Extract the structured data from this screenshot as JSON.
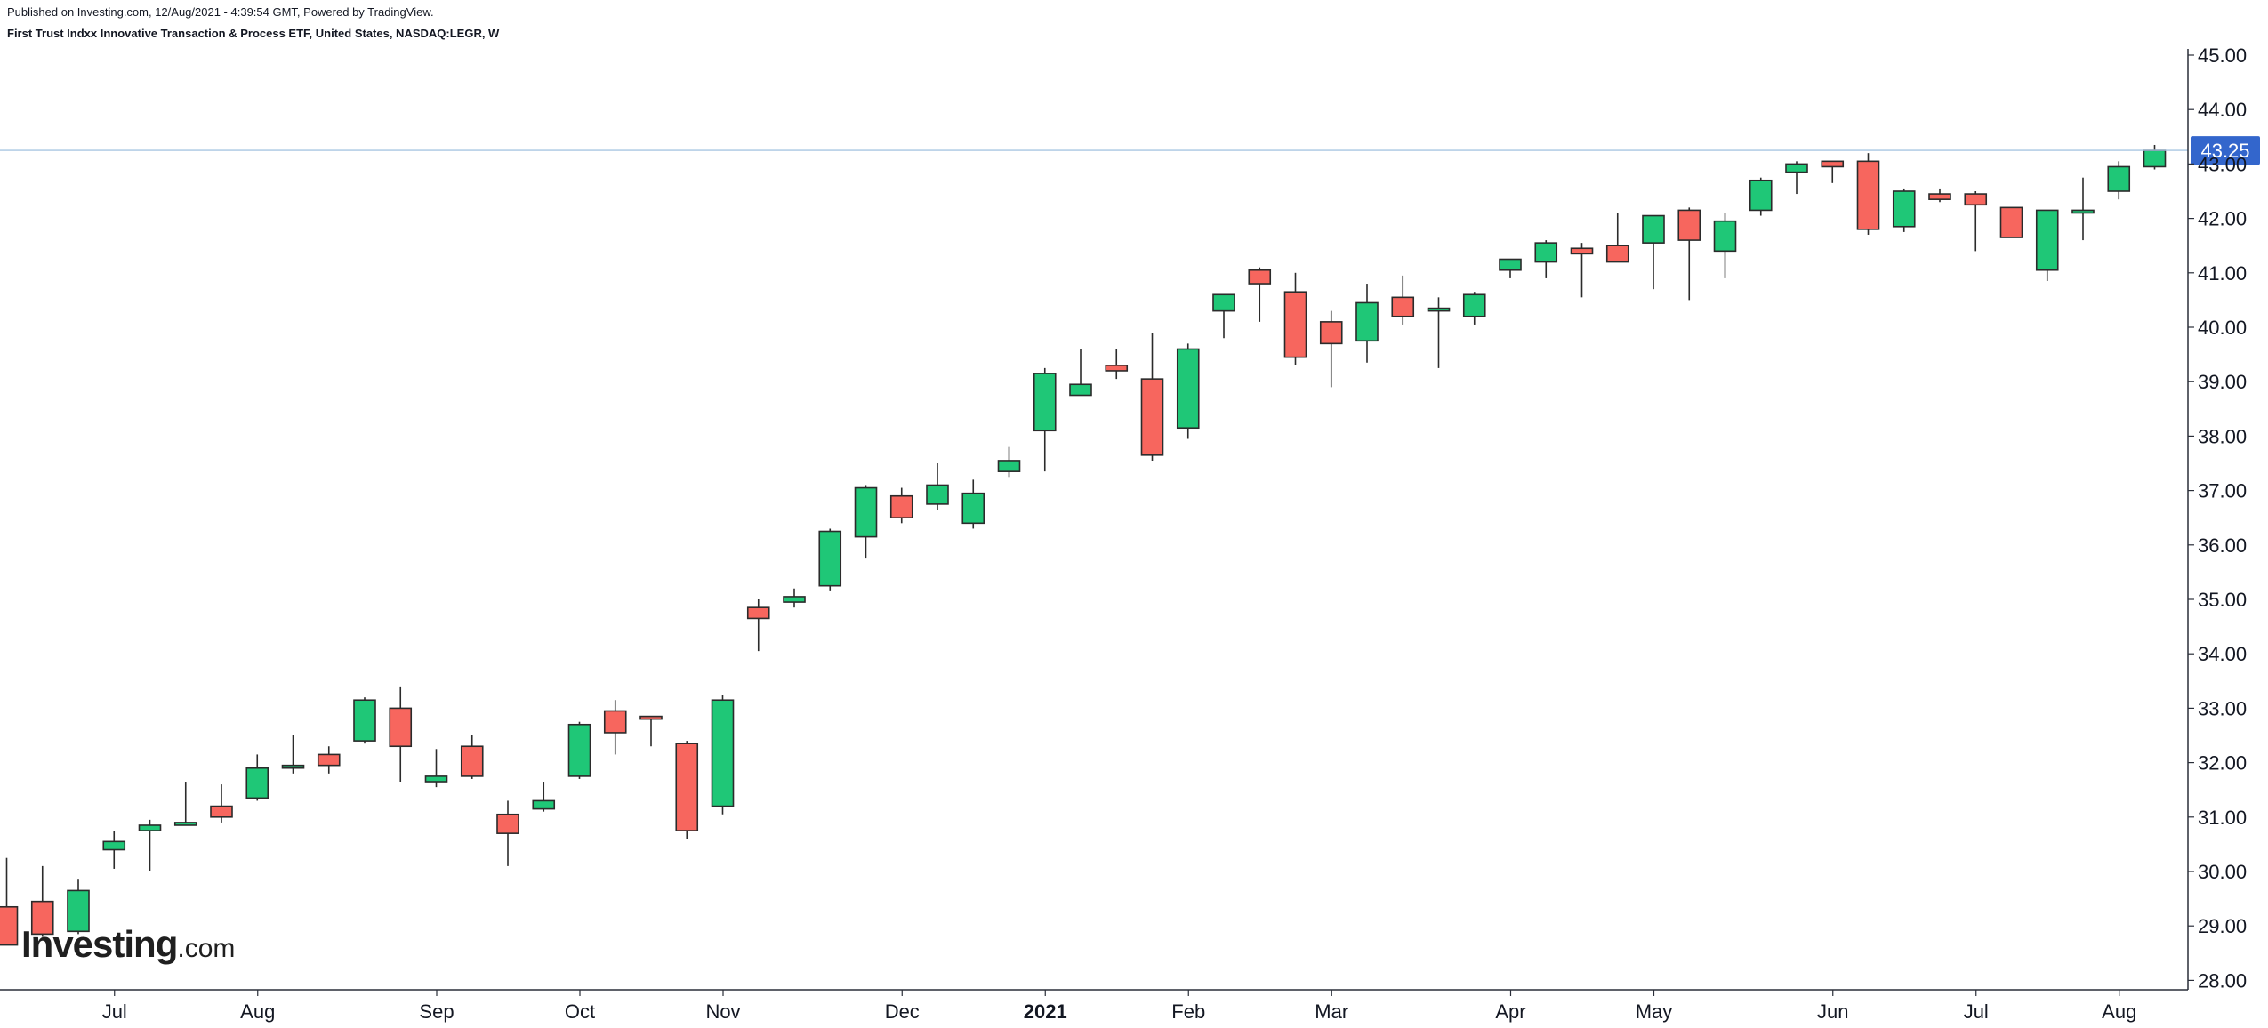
{
  "header": {
    "published": "Published on Investing.com, 12/Aug/2021 - 4:39:54 GMT, Powered by TradingView.",
    "title": "First Trust Indxx Innovative Transaction & Process ETF, United States, NASDAQ:LEGR, W"
  },
  "logo": {
    "main": "Investing",
    "suffix": ".com"
  },
  "chart_data": {
    "type": "candlestick",
    "ylim": [
      27.7,
      45.3
    ],
    "y_ticks": [
      "28.00",
      "29.00",
      "30.00",
      "31.00",
      "32.00",
      "33.00",
      "34.00",
      "35.00",
      "36.00",
      "37.00",
      "38.00",
      "39.00",
      "40.00",
      "41.00",
      "42.00",
      "43.00",
      "44.00",
      "45.00"
    ],
    "last_price": {
      "label": "43.25",
      "value": 43.25
    },
    "x_labels": [
      {
        "label": "Jul",
        "bar": 3,
        "bold": false
      },
      {
        "label": "Aug",
        "bar": 7,
        "bold": false
      },
      {
        "label": "Sep",
        "bar": 12,
        "bold": false
      },
      {
        "label": "Oct",
        "bar": 16,
        "bold": false
      },
      {
        "label": "Nov",
        "bar": 20,
        "bold": false
      },
      {
        "label": "Dec",
        "bar": 25,
        "bold": false
      },
      {
        "label": "2021",
        "bar": 29,
        "bold": true
      },
      {
        "label": "Feb",
        "bar": 33,
        "bold": false
      },
      {
        "label": "Mar",
        "bar": 37,
        "bold": false
      },
      {
        "label": "Apr",
        "bar": 42,
        "bold": false
      },
      {
        "label": "May",
        "bar": 46,
        "bold": false
      },
      {
        "label": "Jun",
        "bar": 51,
        "bold": false
      },
      {
        "label": "Jul",
        "bar": 55,
        "bold": false
      },
      {
        "label": "Aug",
        "bar": 59,
        "bold": false
      }
    ],
    "colors": {
      "up": "#1fc777",
      "down": "#f7665e",
      "outline": "#2b2b2b",
      "price_tag": "#3366cc",
      "price_line": "#a8c6e2"
    },
    "candles": [
      [
        29.35,
        30.25,
        28.65,
        28.65
      ],
      [
        29.45,
        30.1,
        28.8,
        28.85
      ],
      [
        28.9,
        29.85,
        28.85,
        29.65
      ],
      [
        30.4,
        30.75,
        30.05,
        30.55
      ],
      [
        30.75,
        30.95,
        30.0,
        30.85
      ],
      [
        30.85,
        31.65,
        30.85,
        30.9
      ],
      [
        31.2,
        31.6,
        30.9,
        31.0
      ],
      [
        31.35,
        32.15,
        31.3,
        31.9
      ],
      [
        31.9,
        32.5,
        31.8,
        31.95
      ],
      [
        32.15,
        32.3,
        31.8,
        31.95
      ],
      [
        32.4,
        33.2,
        32.35,
        33.15
      ],
      [
        33.0,
        33.4,
        31.65,
        32.3
      ],
      [
        31.65,
        32.25,
        31.55,
        31.75
      ],
      [
        32.3,
        32.5,
        31.7,
        31.75
      ],
      [
        31.05,
        31.3,
        30.1,
        30.7
      ],
      [
        31.15,
        31.65,
        31.1,
        31.3
      ],
      [
        31.75,
        32.75,
        31.7,
        32.7
      ],
      [
        32.95,
        33.15,
        32.15,
        32.55
      ],
      [
        32.85,
        32.85,
        32.3,
        32.8
      ],
      [
        32.35,
        32.4,
        30.6,
        30.75
      ],
      [
        31.2,
        33.25,
        31.05,
        33.15
      ],
      [
        34.85,
        35.0,
        34.05,
        34.65
      ],
      [
        34.95,
        35.2,
        34.85,
        35.05
      ],
      [
        35.25,
        36.3,
        35.15,
        36.25
      ],
      [
        36.15,
        37.1,
        35.75,
        37.05
      ],
      [
        36.9,
        37.05,
        36.4,
        36.5
      ],
      [
        36.75,
        37.5,
        36.65,
        37.1
      ],
      [
        36.4,
        37.2,
        36.3,
        36.95
      ],
      [
        37.35,
        37.8,
        37.25,
        37.55
      ],
      [
        38.1,
        39.25,
        37.35,
        39.15
      ],
      [
        38.75,
        39.6,
        38.75,
        38.95
      ],
      [
        39.3,
        39.6,
        39.05,
        39.2
      ],
      [
        39.05,
        39.9,
        37.55,
        37.65
      ],
      [
        38.15,
        39.7,
        37.95,
        39.6
      ],
      [
        40.3,
        40.6,
        39.8,
        40.6
      ],
      [
        41.05,
        41.1,
        40.1,
        40.8
      ],
      [
        40.65,
        41.0,
        39.3,
        39.45
      ],
      [
        40.1,
        40.3,
        38.9,
        39.7
      ],
      [
        39.75,
        40.8,
        39.35,
        40.45
      ],
      [
        40.55,
        40.95,
        40.05,
        40.2
      ],
      [
        40.3,
        40.55,
        39.25,
        40.35
      ],
      [
        40.2,
        40.65,
        40.05,
        40.6
      ],
      [
        41.05,
        41.25,
        40.9,
        41.25
      ],
      [
        41.2,
        41.6,
        40.9,
        41.55
      ],
      [
        41.45,
        41.55,
        40.55,
        41.35
      ],
      [
        41.5,
        42.1,
        41.2,
        41.2
      ],
      [
        41.55,
        42.05,
        40.7,
        42.05
      ],
      [
        42.15,
        42.2,
        40.5,
        41.6
      ],
      [
        41.4,
        42.1,
        40.9,
        41.95
      ],
      [
        42.15,
        42.75,
        42.05,
        42.7
      ],
      [
        42.85,
        43.05,
        42.45,
        43.0
      ],
      [
        43.05,
        43.05,
        42.65,
        42.95
      ],
      [
        43.05,
        43.2,
        41.7,
        41.8
      ],
      [
        41.85,
        42.55,
        41.75,
        42.5
      ],
      [
        42.45,
        42.55,
        42.3,
        42.35
      ],
      [
        42.45,
        42.5,
        41.4,
        42.25
      ],
      [
        42.2,
        42.2,
        41.65,
        41.65
      ],
      [
        41.05,
        42.15,
        40.85,
        42.15
      ],
      [
        42.1,
        42.75,
        41.6,
        42.15
      ],
      [
        42.5,
        43.05,
        42.35,
        42.95
      ],
      [
        42.95,
        43.35,
        42.9,
        43.25
      ]
    ]
  }
}
